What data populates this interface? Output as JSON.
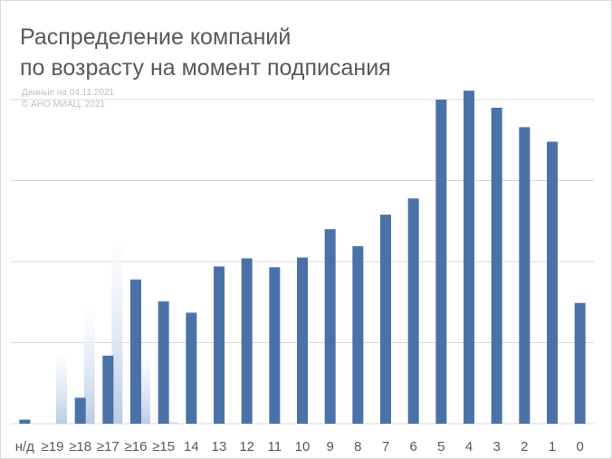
{
  "title": {
    "line1": "Распределение компаний",
    "line2": "по возрасту на момент подписания"
  },
  "source": {
    "line1": "Данные на 04.11.2021",
    "line2": "© АНО МИАЦ, 2021"
  },
  "colors": {
    "bar": "#4a72a8",
    "ghost": "#c9d7ea",
    "grid": "#d9d9d9",
    "text": "#595959"
  },
  "chart_data": {
    "type": "bar",
    "title": "Распределение компаний по возрасту на момент подписания",
    "xlabel": "",
    "ylabel": "",
    "ylim": [
      0,
      4
    ],
    "grid": true,
    "legend": "none",
    "categories": [
      "н/д",
      "≥19",
      "≥18",
      "≥17",
      "≥16",
      "≥15",
      "14",
      "13",
      "12",
      "11",
      "10",
      "9",
      "8",
      "7",
      "6",
      "5",
      "4",
      "3",
      "2",
      "1",
      "0"
    ],
    "values": [
      0.05,
      0,
      0.32,
      0.84,
      1.78,
      1.51,
      1.37,
      1.94,
      2.04,
      1.93,
      2.05,
      2.4,
      2.19,
      2.58,
      2.78,
      4.0,
      4.11,
      3.9,
      3.66,
      3.48,
      1.49
    ],
    "faded_values": [
      0,
      0.87,
      1.47,
      2.31,
      0.89,
      0.03,
      0,
      0,
      0,
      0,
      0,
      0,
      0,
      0,
      0,
      0,
      0,
      0,
      0,
      0,
      0
    ]
  }
}
